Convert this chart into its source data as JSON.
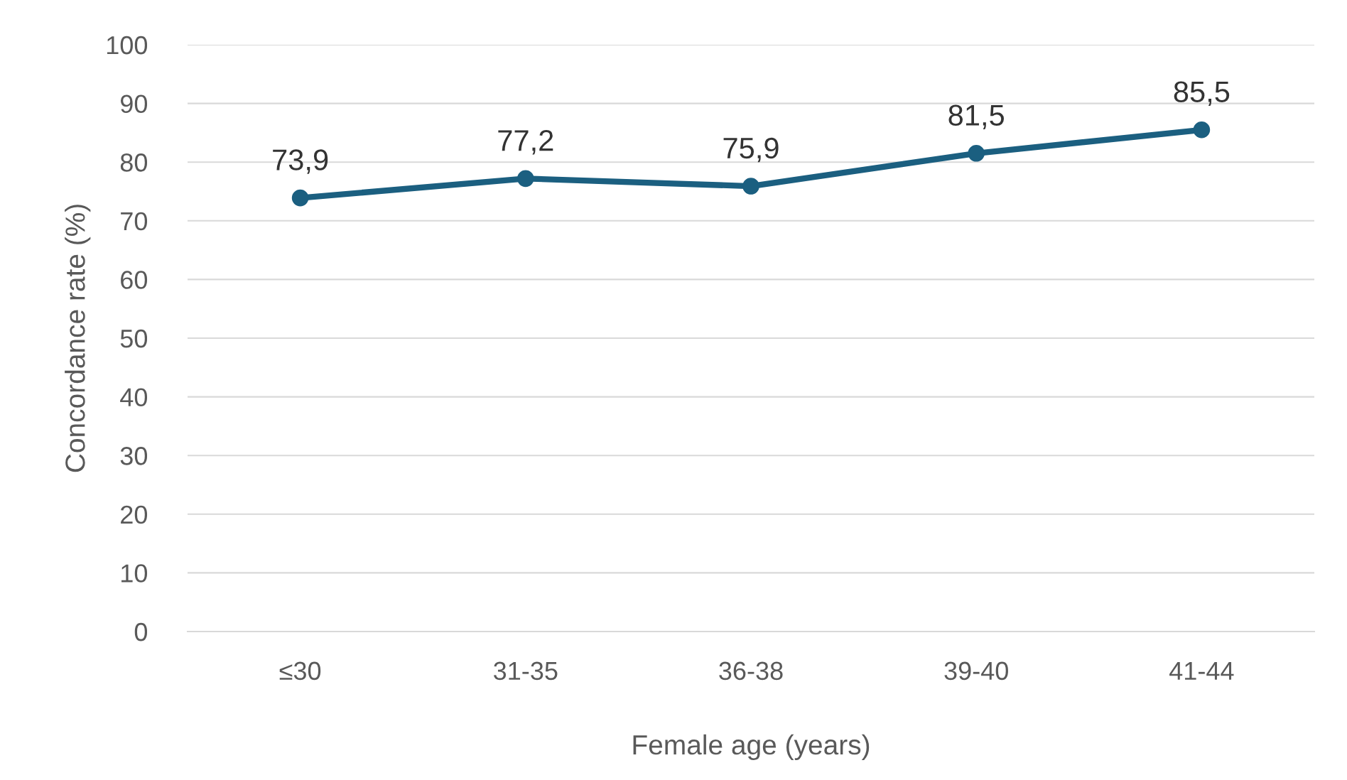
{
  "chart_data": {
    "type": "line",
    "xlabel": "Female age (years)",
    "ylabel": "Concordance rate (%)",
    "categories": [
      "≤30",
      "31-35",
      "36-38",
      "39-40",
      "41-44"
    ],
    "series": [
      {
        "color": "#1b5f80",
        "values": [
          73.9,
          77.2,
          75.9,
          81.5,
          85.5
        ],
        "value_labels": [
          "73,9",
          "77,2",
          "75,9",
          "81,5",
          "85,5"
        ]
      }
    ],
    "ylim": [
      0,
      100
    ],
    "yticks": [
      0,
      10,
      20,
      30,
      40,
      50,
      60,
      70,
      80,
      90,
      100
    ],
    "grid": "y",
    "marker": "circle",
    "line_style": "solid"
  }
}
